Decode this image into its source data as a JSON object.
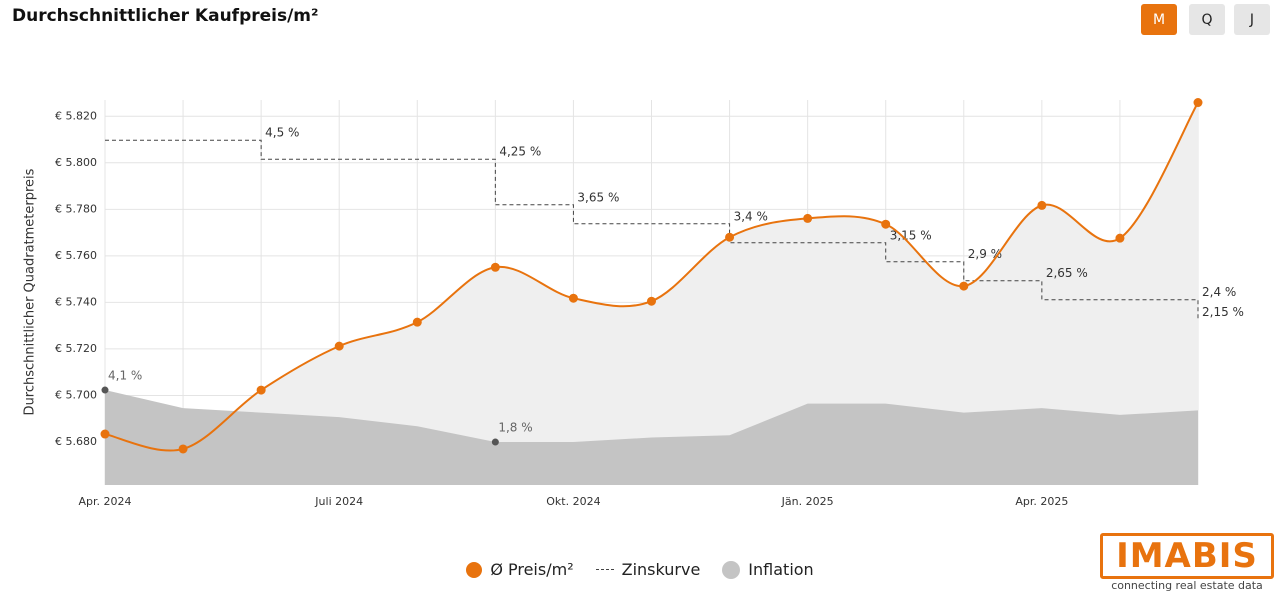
{
  "chart_data": {
    "type": "line",
    "title": "Durchschnittlicher Kaufpreis/m²",
    "buttons": [
      "M",
      "Q",
      "J"
    ],
    "active_button": "M",
    "y_label": "Durchschnittlicher Quadratmeterpreis",
    "categories": [
      "Apr. 2024",
      null,
      null,
      "Juli 2024",
      null,
      null,
      "Okt. 2024",
      null,
      null,
      "Jän. 2025",
      null,
      null,
      "Apr. 2025",
      null,
      null
    ],
    "ylim": [
      5661.5,
      5827
    ],
    "y2lim": [
      -0.1,
      16.93
    ],
    "y3lim": [
      -0.04,
      5.03
    ],
    "yticks": [
      {
        "value": 5680,
        "label": "€ 5.680"
      },
      {
        "value": 5700,
        "label": "€ 5.700"
      },
      {
        "value": 5720,
        "label": "€ 5.720"
      },
      {
        "value": 5740,
        "label": "€ 5.740"
      },
      {
        "value": 5760,
        "label": "€ 5.760"
      },
      {
        "value": 5780,
        "label": "€ 5.780"
      },
      {
        "value": 5800,
        "label": "€ 5.800"
      },
      {
        "value": 5820,
        "label": "€ 5.820"
      }
    ],
    "grid": true,
    "series": [
      {
        "name": "Ø Preis/m²",
        "color": "#e8730e",
        "area_color": "#efefef",
        "values": [
          5683.4,
          5677,
          5702.3,
          5721.2,
          5731.5,
          5755.1,
          5741.8,
          5740.5,
          5768,
          5776.1,
          5773.6,
          5747,
          5781.7,
          5767.6,
          5825.9
        ]
      },
      {
        "name": "Zinskurve",
        "color": "#444444",
        "axis": "y3",
        "values": [
          4.5,
          4.5,
          4.5,
          4.25,
          4.25,
          4.25,
          3.65,
          3.4,
          3.4,
          3.15,
          3.15,
          2.9,
          2.65,
          2.4,
          2.4
        ],
        "value_labels": [
          null,
          null,
          "4,5 %",
          null,
          null,
          "4,25 %",
          "3,65 %",
          null,
          "3,4 %",
          null,
          "3,15 %",
          "2,9 %",
          "2,65 %",
          null,
          "2,4 %"
        ],
        "final": {
          "value": 2.15,
          "label": "2,15 %"
        }
      },
      {
        "name": "Inflation",
        "color": "#c4c4c4",
        "axis": "y2",
        "values": [
          4.1,
          3.3,
          3.1,
          2.9,
          2.5,
          1.8,
          1.8,
          2.0,
          2.1,
          3.5,
          3.5,
          3.1,
          3.3,
          3.0,
          3.2
        ],
        "value_labels": [
          "4,1 %",
          null,
          null,
          null,
          null,
          "1,8 %",
          null,
          null,
          null,
          null,
          null,
          null,
          null,
          null,
          null
        ]
      }
    ],
    "logo": "IMABIS",
    "tagline": "connecting real estate data"
  }
}
